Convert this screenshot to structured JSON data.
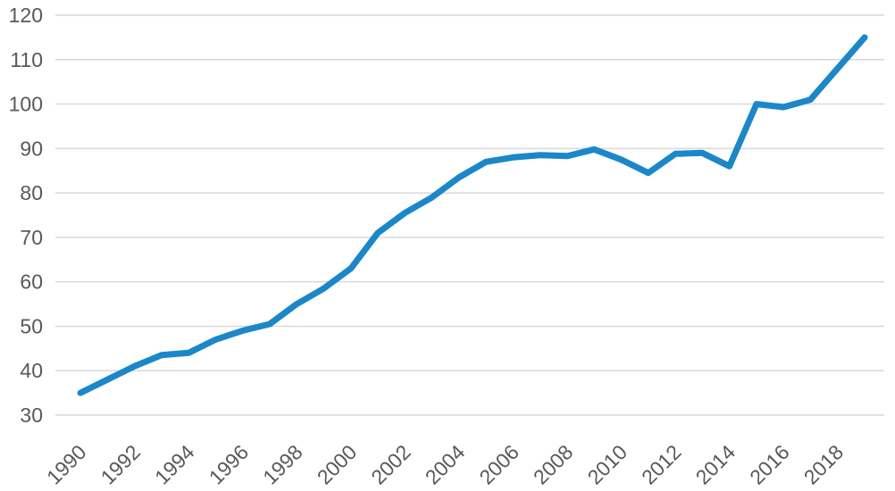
{
  "chart_data": {
    "type": "line",
    "title": "",
    "xlabel": "",
    "ylabel": "",
    "x": [
      1990,
      1991,
      1992,
      1993,
      1994,
      1995,
      1996,
      1997,
      1998,
      1999,
      2000,
      2001,
      2002,
      2003,
      2004,
      2005,
      2006,
      2007,
      2008,
      2009,
      2010,
      2011,
      2012,
      2013,
      2014,
      2015,
      2016,
      2017,
      2018,
      2019
    ],
    "series": [
      {
        "name": "series-1",
        "values": [
          35,
          38,
          41,
          43.5,
          44,
          47,
          49,
          50.5,
          55,
          58.5,
          63,
          71,
          75.5,
          79,
          83.5,
          87,
          88,
          88.5,
          88.3,
          89.8,
          87.5,
          84.5,
          88.8,
          89,
          86,
          100,
          99.3,
          101,
          108,
          115
        ]
      }
    ],
    "ylim": [
      30,
      120
    ],
    "yticks": [
      30,
      40,
      50,
      60,
      70,
      80,
      90,
      100,
      110,
      120
    ],
    "xticks": [
      1990,
      1992,
      1994,
      1996,
      1998,
      2000,
      2002,
      2004,
      2006,
      2008,
      2010,
      2012,
      2014,
      2016,
      2018
    ],
    "grid": "horizontal",
    "legend": "none",
    "line_color": "#1b87c9",
    "grid_color": "#d9d9d9",
    "label_color": "#595959"
  }
}
